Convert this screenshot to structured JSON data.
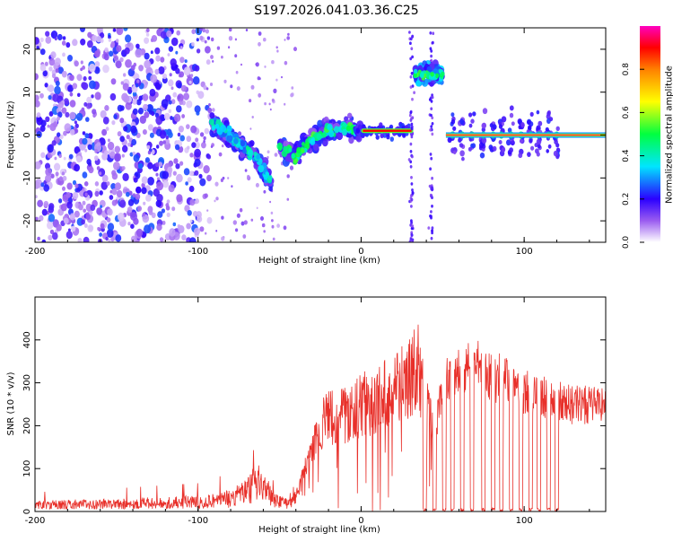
{
  "figure_title": "S197.2026.041.03.36.C25",
  "colors": {
    "snr_line": "#e8302a",
    "axis": "#000000",
    "gridline": "#c8c8c8",
    "background": "#ffffff"
  },
  "chart_data": [
    {
      "type": "heatmap",
      "title": "",
      "xlabel": "Height of straight line (km)",
      "ylabel": "Frequency (Hz)",
      "xlim": [
        -200,
        150
      ],
      "ylim": [
        -25,
        25
      ],
      "x_ticks": [
        -200,
        -100,
        0,
        100
      ],
      "x_tick_labels": [
        "-200",
        "-100",
        "0",
        "100"
      ],
      "y_ticks": [
        -20,
        -10,
        0,
        10,
        20
      ],
      "y_tick_labels": [
        "-20",
        "-10",
        "0",
        "10",
        "20"
      ],
      "colorbar": {
        "label": "Normalized spectral amplitude",
        "range": [
          0,
          1
        ],
        "ticks": [
          0.0,
          0.2,
          0.4,
          0.6,
          0.8
        ],
        "tick_labels": [
          "0.0",
          "0.2",
          "0.4",
          "0.6",
          "0.8"
        ],
        "colormap": [
          "#ffffff",
          "#8a2be2",
          "#0000ff",
          "#00e5ff",
          "#00ff00",
          "#ffff00",
          "#ff8c00",
          "#ff0000",
          "#ff00cc"
        ]
      },
      "features": [
        {
          "name": "diffuse noise",
          "x_range": [
            -200,
            -90
          ],
          "freq_range": [
            -25,
            25
          ],
          "amplitude": 0.12
        },
        {
          "name": "descending track",
          "x": [
            -92,
            -85,
            -78,
            -72,
            -65,
            -60,
            -55
          ],
          "freq": [
            3,
            1,
            -1,
            -3,
            -5,
            -8,
            -11
          ],
          "amplitude": 0.3
        },
        {
          "name": "transition track",
          "x": [
            -50,
            -45,
            -40,
            -35,
            -30,
            -25,
            -20,
            -15,
            -10,
            -5,
            0
          ],
          "freq": [
            -3,
            -4,
            -5,
            -3,
            -1,
            0,
            1,
            1,
            2,
            1,
            1
          ],
          "amplitude": 0.4
        },
        {
          "name": "steady line",
          "x_range": [
            0,
            32
          ],
          "freq": 1,
          "amplitude": 0.9
        },
        {
          "name": "high-frequency burst",
          "x_range": [
            33,
            50
          ],
          "freq": 14,
          "amplitude": 0.5
        },
        {
          "name": "pulsed line",
          "x_range": [
            52,
            150
          ],
          "freq": 0,
          "amplitude": 0.95
        }
      ]
    },
    {
      "type": "line",
      "title": "",
      "xlabel": "Height of straight line (km)",
      "ylabel": "SNR (10 * v/v)",
      "xlim": [
        -200,
        150
      ],
      "ylim": [
        0,
        500
      ],
      "x_ticks": [
        -200,
        -100,
        0,
        100
      ],
      "x_tick_labels": [
        "-200",
        "-100",
        "0",
        "100"
      ],
      "y_ticks": [
        0,
        100,
        200,
        300,
        400
      ],
      "y_tick_labels": [
        "0",
        "100",
        "200",
        "300",
        "400"
      ],
      "series": [
        {
          "name": "SNR",
          "envelope_x": [
            -200,
            -150,
            -100,
            -80,
            -70,
            -65,
            -60,
            -55,
            -50,
            -45,
            -40,
            -35,
            -30,
            -25,
            -20,
            -15,
            -10,
            -5,
            0,
            10,
            20,
            30,
            35,
            40,
            45,
            50,
            60,
            70,
            80,
            90,
            100,
            110,
            120,
            130,
            140,
            150
          ],
          "envelope_y": [
            15,
            18,
            22,
            30,
            45,
            70,
            60,
            35,
            25,
            20,
            40,
            100,
            160,
            220,
            250,
            240,
            260,
            270,
            280,
            300,
            330,
            360,
            380,
            300,
            180,
            320,
            350,
            370,
            340,
            330,
            300,
            290,
            280,
            270,
            270,
            265
          ],
          "dropouts_x": [
            39,
            45,
            51,
            56,
            62,
            68,
            75,
            81,
            86,
            92,
            98,
            104,
            109,
            115,
            120
          ],
          "dropout_y": 0
        }
      ]
    }
  ]
}
